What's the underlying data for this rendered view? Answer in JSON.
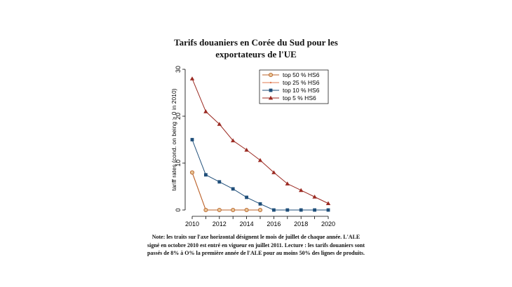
{
  "chart_data": {
    "type": "line",
    "title": "Tarifs douaniers en Corée du Sud pour les exportateurs de l'UE",
    "title_lines": [
      "Tarifs douaniers en Corée du Sud pour les",
      "exportateurs de l'UE"
    ],
    "xlabel": "",
    "ylabel": "tariff rates (cond. on being > 0 in 2010)",
    "xlim": [
      2010,
      2020
    ],
    "ylim": [
      0,
      30
    ],
    "xticks": [
      "2010",
      "2012",
      "2014",
      "2016",
      "2018",
      "2020"
    ],
    "yticks": [
      "0",
      "10",
      "20",
      "30"
    ],
    "legend_position": "top-right",
    "series": [
      {
        "name": "top 50 % HS6",
        "color": "#b8622a",
        "marker": "circle",
        "x": [
          2010,
          2011,
          2012,
          2013,
          2014,
          2015
        ],
        "y": [
          8,
          0,
          0,
          0,
          0,
          0
        ]
      },
      {
        "name": "top 25 % HS6",
        "color": "#e07a52",
        "marker": "dot",
        "x": [
          2010,
          2011,
          2012,
          2013,
          2014,
          2015
        ],
        "y": [
          8,
          0,
          0,
          0,
          0,
          0
        ]
      },
      {
        "name": "top 10 % HS6",
        "color": "#1f4e79",
        "marker": "square",
        "x": [
          2010,
          2011,
          2012,
          2013,
          2014,
          2015,
          2016,
          2017,
          2018,
          2019,
          2020
        ],
        "y": [
          15,
          7.5,
          6,
          4.5,
          2.7,
          1.3,
          0,
          0,
          0,
          0,
          0
        ]
      },
      {
        "name": "top 5 % HS6",
        "color": "#9b2a22",
        "marker": "triangle",
        "x": [
          2010,
          2011,
          2012,
          2013,
          2014,
          2015,
          2016,
          2017,
          2018,
          2019,
          2020
        ],
        "y": [
          28,
          21,
          18.3,
          14.8,
          12.8,
          10.6,
          8,
          5.6,
          4.2,
          2.8,
          1.4
        ]
      }
    ]
  },
  "note_lines": [
    "Note: les traits sur l'axe horizontal désignent le mois de juillet de chaque année. L'ALE",
    "signé en octobre 2010 est entré en vigueur en juillet 2011. Lecture : les tarifs douaniers sont",
    "passés de 8% à O% la première année de l'ALE pour au moins 50% des lignes de produits."
  ]
}
